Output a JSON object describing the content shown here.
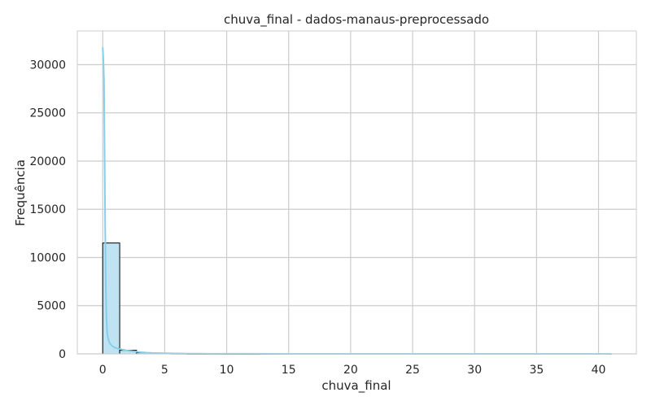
{
  "chart_data": {
    "type": "bar",
    "subtype": "histogram with kde line",
    "title": "chuva_final - dados-manaus-preprocessado",
    "xlabel": "chuva_final",
    "ylabel": "Frequência",
    "xlim": [
      -2.05,
      43.05
    ],
    "ylim": [
      0,
      33500
    ],
    "xticks": [
      0,
      5,
      10,
      15,
      20,
      25,
      30,
      35,
      40
    ],
    "yticks": [
      0,
      5000,
      10000,
      15000,
      20000,
      25000,
      30000
    ],
    "grid": true,
    "colors": {
      "bar_fill": "#bfe3f2",
      "bar_edge": "#000000",
      "kde_line": "#87ceeb",
      "grid": "#cccccc",
      "axes_edge": "#cccccc"
    },
    "bins": [
      {
        "x0": 0.0,
        "x1": 1.37,
        "value": 11500
      },
      {
        "x0": 1.37,
        "x1": 2.73,
        "value": 370
      },
      {
        "x0": 2.73,
        "x1": 4.1,
        "value": 120
      },
      {
        "x0": 4.1,
        "x1": 5.47,
        "value": 70
      },
      {
        "x0": 5.47,
        "x1": 6.83,
        "value": 35
      },
      {
        "x0": 6.83,
        "x1": 8.2,
        "value": 20
      },
      {
        "x0": 8.2,
        "x1": 9.57,
        "value": 12
      },
      {
        "x0": 9.57,
        "x1": 10.93,
        "value": 8
      },
      {
        "x0": 10.93,
        "x1": 12.3,
        "value": 5
      },
      {
        "x0": 12.3,
        "x1": 13.67,
        "value": 4
      },
      {
        "x0": 13.67,
        "x1": 15.03,
        "value": 3
      },
      {
        "x0": 15.03,
        "x1": 16.4,
        "value": 2
      },
      {
        "x0": 16.4,
        "x1": 17.77,
        "value": 2
      },
      {
        "x0": 17.77,
        "x1": 19.13,
        "value": 1
      },
      {
        "x0": 19.13,
        "x1": 20.5,
        "value": 1
      },
      {
        "x0": 20.5,
        "x1": 21.87,
        "value": 1
      },
      {
        "x0": 21.87,
        "x1": 23.23,
        "value": 1
      },
      {
        "x0": 23.23,
        "x1": 24.6,
        "value": 1
      },
      {
        "x0": 24.6,
        "x1": 25.97,
        "value": 0
      },
      {
        "x0": 25.97,
        "x1": 27.33,
        "value": 1
      },
      {
        "x0": 27.33,
        "x1": 28.7,
        "value": 0
      },
      {
        "x0": 28.7,
        "x1": 30.07,
        "value": 0
      },
      {
        "x0": 30.07,
        "x1": 31.43,
        "value": 0
      },
      {
        "x0": 31.43,
        "x1": 32.8,
        "value": 0
      },
      {
        "x0": 32.8,
        "x1": 34.17,
        "value": 0
      },
      {
        "x0": 34.17,
        "x1": 35.53,
        "value": 0
      },
      {
        "x0": 35.53,
        "x1": 36.9,
        "value": 0
      },
      {
        "x0": 36.9,
        "x1": 38.27,
        "value": 0
      },
      {
        "x0": 38.27,
        "x1": 39.63,
        "value": 0
      },
      {
        "x0": 39.63,
        "x1": 41.0,
        "value": 1
      }
    ],
    "kde": {
      "x": [
        0,
        0.05,
        0.1,
        0.15,
        0.2,
        0.25,
        0.3,
        0.35,
        0.4,
        0.5,
        0.6,
        0.7,
        0.8,
        0.9,
        1.0,
        1.2,
        1.4,
        1.6,
        1.8,
        2.0,
        2.5,
        3.0,
        3.5,
        4.0,
        5.0,
        6.0,
        7.0,
        8.0,
        10.0,
        12.0,
        15.0,
        20.0,
        25.0,
        30.0,
        35.0,
        41.0
      ],
      "y": [
        31800,
        30500,
        28600,
        21000,
        13000,
        7000,
        3800,
        2400,
        1800,
        1300,
        1050,
        900,
        780,
        700,
        640,
        560,
        500,
        440,
        390,
        340,
        250,
        180,
        130,
        95,
        60,
        38,
        25,
        17,
        10,
        6,
        3,
        2,
        1,
        1,
        0,
        0
      ]
    }
  }
}
